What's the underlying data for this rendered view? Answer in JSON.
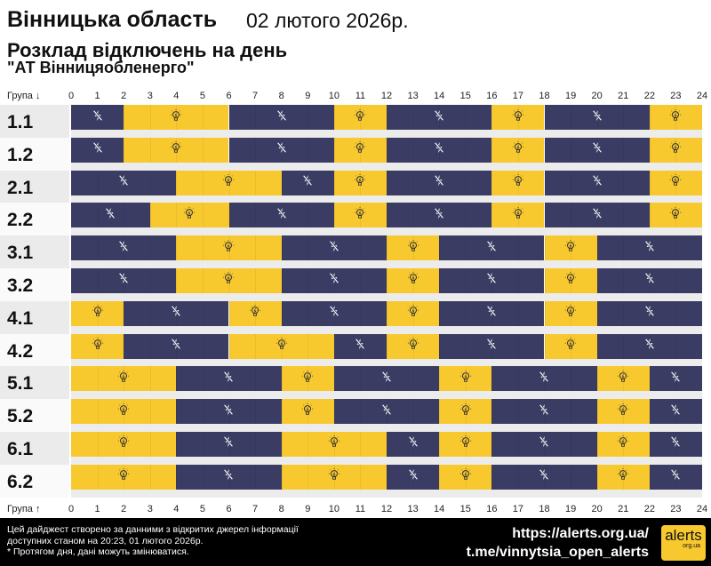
{
  "header": {
    "region": "Вінницька область",
    "date": "02 лютого 2026р.",
    "title": "Розклад відключень на день",
    "company": "\"АТ Вінницяобленерго\""
  },
  "axis": {
    "top_label": "Група ↓",
    "bottom_label": "Група ↑",
    "hours": [
      "0",
      "1",
      "2",
      "3",
      "4",
      "5",
      "6",
      "7",
      "8",
      "9",
      "10",
      "11",
      "12",
      "13",
      "14",
      "15",
      "16",
      "17",
      "18",
      "19",
      "20",
      "21",
      "22",
      "23",
      "24"
    ]
  },
  "colors": {
    "off": "#3b3c63",
    "on": "#f8c92f"
  },
  "icons": {
    "off": "power-off-icon",
    "on": "light-bulb-icon"
  },
  "groups": [
    {
      "name": "1.1",
      "segments": [
        [
          0,
          2,
          "off"
        ],
        [
          2,
          6,
          "on"
        ],
        [
          6,
          10,
          "off"
        ],
        [
          10,
          12,
          "on"
        ],
        [
          12,
          16,
          "off"
        ],
        [
          16,
          18,
          "on"
        ],
        [
          18,
          22,
          "off"
        ],
        [
          22,
          24,
          "on"
        ]
      ]
    },
    {
      "name": "1.2",
      "segments": [
        [
          0,
          2,
          "off"
        ],
        [
          2,
          6,
          "on"
        ],
        [
          6,
          10,
          "off"
        ],
        [
          10,
          12,
          "on"
        ],
        [
          12,
          16,
          "off"
        ],
        [
          16,
          18,
          "on"
        ],
        [
          18,
          22,
          "off"
        ],
        [
          22,
          24,
          "on"
        ]
      ]
    },
    {
      "name": "2.1",
      "segments": [
        [
          0,
          4,
          "off"
        ],
        [
          4,
          8,
          "on"
        ],
        [
          8,
          10,
          "off"
        ],
        [
          10,
          12,
          "on"
        ],
        [
          12,
          16,
          "off"
        ],
        [
          16,
          18,
          "on"
        ],
        [
          18,
          22,
          "off"
        ],
        [
          22,
          24,
          "on"
        ]
      ]
    },
    {
      "name": "2.2",
      "segments": [
        [
          0,
          3,
          "off"
        ],
        [
          3,
          6,
          "on"
        ],
        [
          6,
          10,
          "off"
        ],
        [
          10,
          12,
          "on"
        ],
        [
          12,
          16,
          "off"
        ],
        [
          16,
          18,
          "on"
        ],
        [
          18,
          22,
          "off"
        ],
        [
          22,
          24,
          "on"
        ]
      ]
    },
    {
      "name": "3.1",
      "segments": [
        [
          0,
          4,
          "off"
        ],
        [
          4,
          8,
          "on"
        ],
        [
          8,
          12,
          "off"
        ],
        [
          12,
          14,
          "on"
        ],
        [
          14,
          18,
          "off"
        ],
        [
          18,
          20,
          "on"
        ],
        [
          20,
          24,
          "off"
        ]
      ]
    },
    {
      "name": "3.2",
      "segments": [
        [
          0,
          4,
          "off"
        ],
        [
          4,
          8,
          "on"
        ],
        [
          8,
          12,
          "off"
        ],
        [
          12,
          14,
          "on"
        ],
        [
          14,
          18,
          "off"
        ],
        [
          18,
          20,
          "on"
        ],
        [
          20,
          24,
          "off"
        ]
      ]
    },
    {
      "name": "4.1",
      "segments": [
        [
          0,
          2,
          "on"
        ],
        [
          2,
          6,
          "off"
        ],
        [
          6,
          8,
          "on"
        ],
        [
          8,
          12,
          "off"
        ],
        [
          12,
          14,
          "on"
        ],
        [
          14,
          18,
          "off"
        ],
        [
          18,
          20,
          "on"
        ],
        [
          20,
          24,
          "off"
        ]
      ]
    },
    {
      "name": "4.2",
      "segments": [
        [
          0,
          2,
          "on"
        ],
        [
          2,
          6,
          "off"
        ],
        [
          6,
          10,
          "on"
        ],
        [
          10,
          12,
          "off"
        ],
        [
          12,
          14,
          "on"
        ],
        [
          14,
          18,
          "off"
        ],
        [
          18,
          20,
          "on"
        ],
        [
          20,
          24,
          "off"
        ]
      ]
    },
    {
      "name": "5.1",
      "segments": [
        [
          0,
          4,
          "on"
        ],
        [
          4,
          8,
          "off"
        ],
        [
          8,
          10,
          "on"
        ],
        [
          10,
          14,
          "off"
        ],
        [
          14,
          16,
          "on"
        ],
        [
          16,
          20,
          "off"
        ],
        [
          20,
          22,
          "on"
        ],
        [
          22,
          24,
          "off"
        ]
      ]
    },
    {
      "name": "5.2",
      "segments": [
        [
          0,
          4,
          "on"
        ],
        [
          4,
          8,
          "off"
        ],
        [
          8,
          10,
          "on"
        ],
        [
          10,
          14,
          "off"
        ],
        [
          14,
          16,
          "on"
        ],
        [
          16,
          20,
          "off"
        ],
        [
          20,
          22,
          "on"
        ],
        [
          22,
          24,
          "off"
        ]
      ]
    },
    {
      "name": "6.1",
      "segments": [
        [
          0,
          4,
          "on"
        ],
        [
          4,
          8,
          "off"
        ],
        [
          8,
          12,
          "on"
        ],
        [
          12,
          14,
          "off"
        ],
        [
          14,
          16,
          "on"
        ],
        [
          16,
          20,
          "off"
        ],
        [
          20,
          22,
          "on"
        ],
        [
          22,
          24,
          "off"
        ]
      ]
    },
    {
      "name": "6.2",
      "segments": [
        [
          0,
          4,
          "on"
        ],
        [
          4,
          8,
          "off"
        ],
        [
          8,
          12,
          "on"
        ],
        [
          12,
          14,
          "off"
        ],
        [
          14,
          16,
          "on"
        ],
        [
          16,
          20,
          "off"
        ],
        [
          20,
          22,
          "on"
        ],
        [
          22,
          24,
          "off"
        ]
      ]
    }
  ],
  "footer": {
    "line1": "Цей дайджест створено за данними з відкритих джерел інформації",
    "line2": "доступних станом на 20:23, 01 лютого 2026р.",
    "line3": "* Протягом дня, дані можуть змінюватися.",
    "site": "https://alerts.org.ua/",
    "telegram": "t.me/vinnytsia_open_alerts",
    "logo_main": "alerts",
    "logo_sub": "org.ua"
  }
}
